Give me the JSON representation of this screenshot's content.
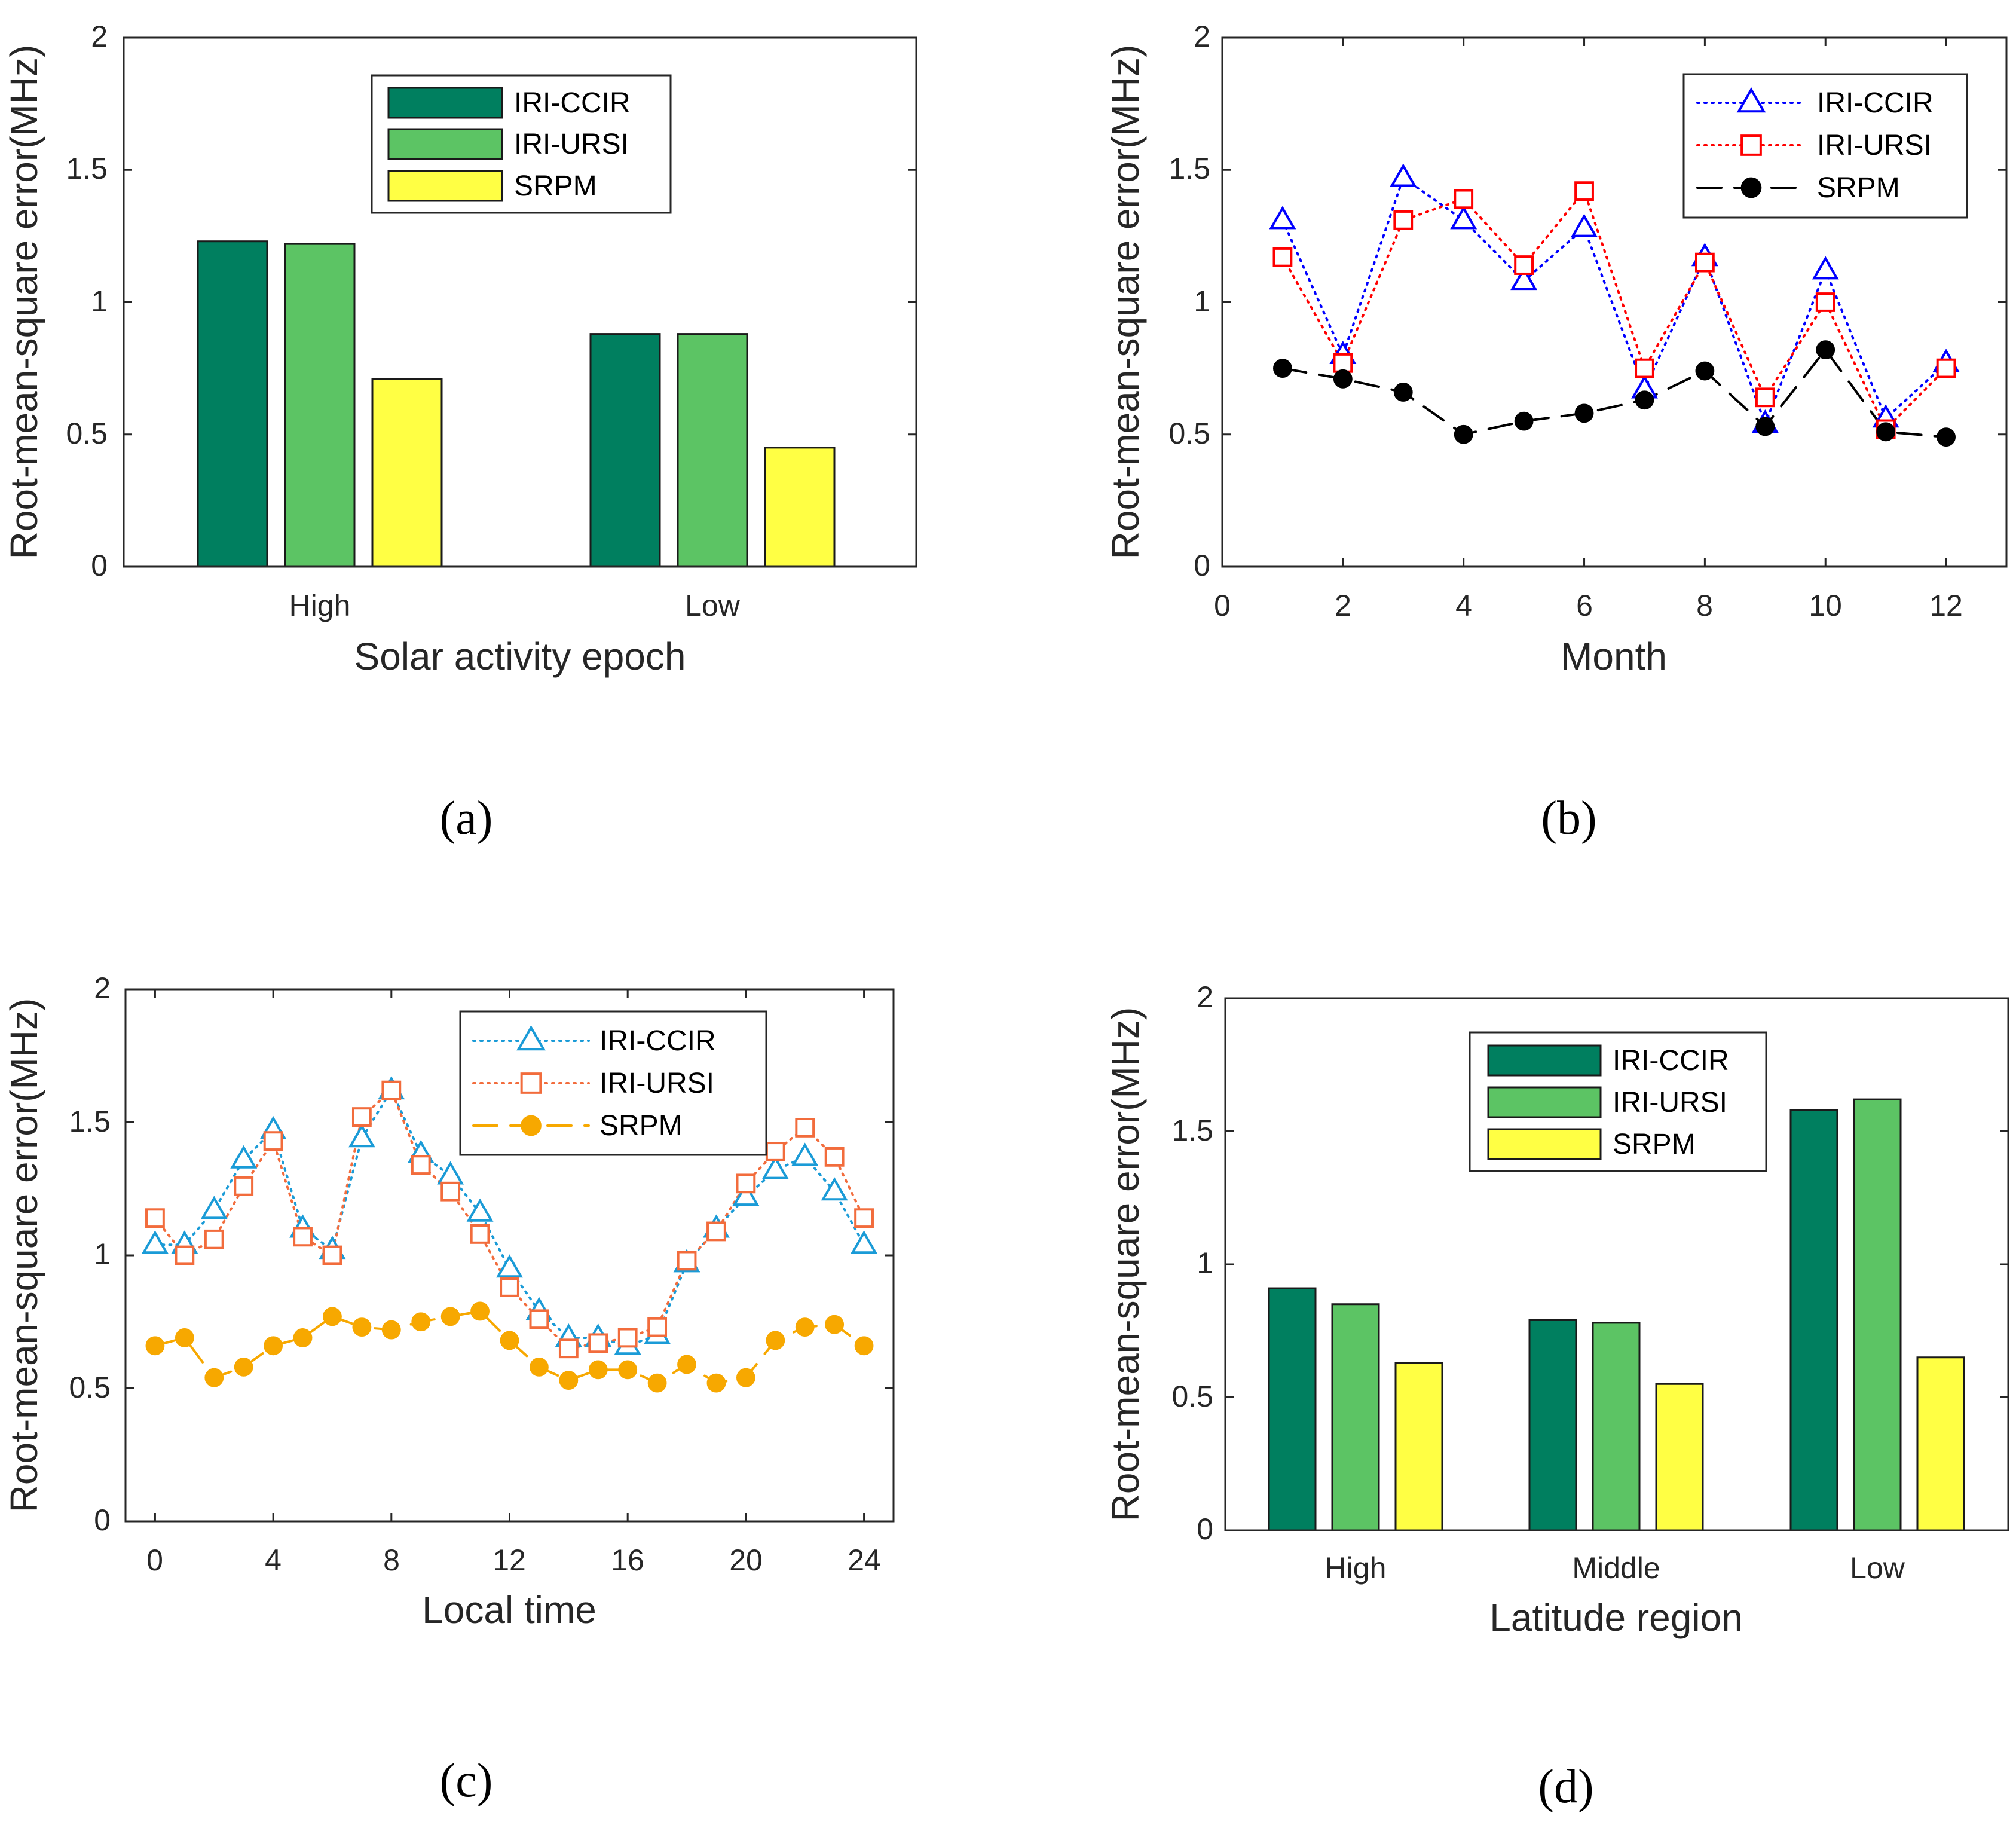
{
  "chart_data": [
    {
      "id": "a",
      "panel_label": "(a)",
      "type": "bar",
      "xlabel": "Solar activity epoch",
      "ylabel": "Root-mean-square error(MHz)",
      "ylim": [
        0,
        2
      ],
      "yticks": [
        0,
        0.5,
        1,
        1.5,
        2
      ],
      "ytick_labels": [
        "0",
        "0.5",
        "1",
        "1.5",
        "2"
      ],
      "categories": [
        "High",
        "Low"
      ],
      "series": [
        {
          "name": "IRI-CCIR",
          "color": "#007f5f",
          "values": [
            1.23,
            0.88
          ]
        },
        {
          "name": "IRI-URSI",
          "color": "#5cc464",
          "values": [
            1.22,
            0.88
          ]
        },
        {
          "name": "SRPM",
          "color": "#ffff44",
          "values": [
            0.71,
            0.45
          ]
        }
      ],
      "legend_position": "top-center"
    },
    {
      "id": "b",
      "panel_label": "(b)",
      "type": "line",
      "xlabel": "Month",
      "ylabel": "Root-mean-square error(MHz)",
      "xlim": [
        0,
        13
      ],
      "ylim": [
        0,
        2
      ],
      "xticks": [
        0,
        2,
        4,
        6,
        8,
        10,
        12
      ],
      "xtick_labels": [
        "0",
        "2",
        "4",
        "6",
        "8",
        "10",
        "12"
      ],
      "yticks": [
        0,
        0.5,
        1,
        1.5,
        2
      ],
      "ytick_labels": [
        "0",
        "0.5",
        "1",
        "1.5",
        "2"
      ],
      "x": [
        1,
        2,
        3,
        4,
        5,
        6,
        7,
        8,
        9,
        10,
        11,
        12
      ],
      "series": [
        {
          "name": "IRI-CCIR",
          "color": "#0000ff",
          "marker": "triangle",
          "line": "dotted",
          "filled": false,
          "values": [
            1.31,
            0.8,
            1.47,
            1.31,
            1.08,
            1.28,
            0.67,
            1.17,
            0.54,
            1.12,
            0.56,
            0.77
          ]
        },
        {
          "name": "IRI-URSI",
          "color": "#ff0000",
          "marker": "square",
          "line": "dotted",
          "filled": false,
          "values": [
            1.17,
            0.77,
            1.31,
            1.39,
            1.14,
            1.42,
            0.75,
            1.15,
            0.64,
            1.0,
            0.52,
            0.75
          ]
        },
        {
          "name": "SRPM",
          "color": "#000000",
          "marker": "circle",
          "line": "dashed",
          "filled": true,
          "values": [
            0.75,
            0.71,
            0.66,
            0.5,
            0.55,
            0.58,
            0.63,
            0.74,
            0.53,
            0.82,
            0.51,
            0.49
          ]
        }
      ],
      "legend_position": "top-right"
    },
    {
      "id": "c",
      "panel_label": "(c)",
      "type": "line",
      "xlabel": "Local time",
      "ylabel": "Root-mean-square error(MHz)",
      "xlim": [
        -1,
        25
      ],
      "ylim": [
        0,
        2
      ],
      "xticks": [
        0,
        4,
        8,
        12,
        16,
        20,
        24
      ],
      "xtick_labels": [
        "0",
        "4",
        "8",
        "12",
        "16",
        "20",
        "24"
      ],
      "yticks": [
        0,
        0.5,
        1,
        1.5,
        2
      ],
      "ytick_labels": [
        "0",
        "0.5",
        "1",
        "1.5",
        "2"
      ],
      "x": [
        0,
        1,
        2,
        3,
        4,
        5,
        6,
        7,
        8,
        9,
        10,
        11,
        12,
        13,
        14,
        15,
        16,
        17,
        18,
        19,
        20,
        21,
        22,
        23,
        24
      ],
      "series": [
        {
          "name": "IRI-CCIR",
          "color": "#1a9bd7",
          "marker": "triangle",
          "line": "dotted",
          "filled": false,
          "values": [
            1.04,
            1.04,
            1.17,
            1.36,
            1.47,
            1.1,
            1.02,
            1.44,
            1.62,
            1.38,
            1.3,
            1.16,
            0.95,
            0.79,
            0.69,
            0.69,
            0.66,
            0.7,
            0.97,
            1.1,
            1.22,
            1.32,
            1.37,
            1.24,
            1.04
          ]
        },
        {
          "name": "IRI-URSI",
          "color": "#f26c3c",
          "marker": "square",
          "line": "dotted",
          "filled": false,
          "values": [
            1.14,
            1.0,
            1.06,
            1.26,
            1.43,
            1.07,
            1.0,
            1.52,
            1.62,
            1.34,
            1.24,
            1.08,
            0.88,
            0.76,
            0.65,
            0.67,
            0.69,
            0.73,
            0.98,
            1.09,
            1.27,
            1.39,
            1.48,
            1.37,
            1.14
          ]
        },
        {
          "name": "SRPM",
          "color": "#f7a800",
          "marker": "circle",
          "line": "dashed",
          "filled": true,
          "values": [
            0.66,
            0.69,
            0.54,
            0.58,
            0.66,
            0.69,
            0.77,
            0.73,
            0.72,
            0.75,
            0.77,
            0.79,
            0.68,
            0.58,
            0.53,
            0.57,
            0.57,
            0.52,
            0.59,
            0.52,
            0.54,
            0.68,
            0.73,
            0.74,
            0.66
          ]
        }
      ],
      "legend_position": "top-right"
    },
    {
      "id": "d",
      "panel_label": "(d)",
      "type": "bar",
      "xlabel": "Latitude region",
      "ylabel": "Root-mean-square error(MHz)",
      "ylim": [
        0,
        2
      ],
      "yticks": [
        0,
        0.5,
        1,
        1.5,
        2
      ],
      "ytick_labels": [
        "0",
        "0.5",
        "1",
        "1.5",
        "2"
      ],
      "categories": [
        "High",
        "Middle",
        "Low"
      ],
      "series": [
        {
          "name": "IRI-CCIR",
          "color": "#007f5f",
          "values": [
            0.91,
            0.79,
            1.58
          ]
        },
        {
          "name": "IRI-URSI",
          "color": "#5cc464",
          "values": [
            0.85,
            0.78,
            1.62
          ]
        },
        {
          "name": "SRPM",
          "color": "#ffff44",
          "values": [
            0.63,
            0.55,
            0.65
          ]
        }
      ],
      "legend_position": "top-center"
    }
  ]
}
